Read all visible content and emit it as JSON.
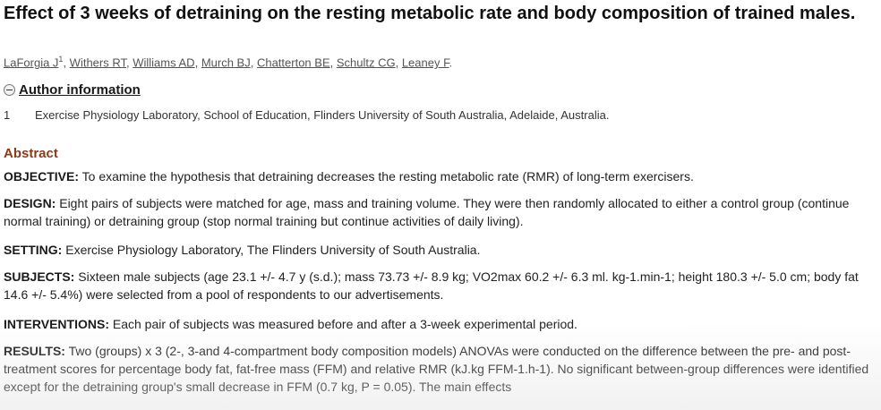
{
  "article": {
    "title": "Effect of 3 weeks of detraining on the resting metabolic rate and body composition of trained males."
  },
  "authors": {
    "list": [
      {
        "name": "LaForgia J",
        "sup": "1"
      },
      {
        "name": "Withers RT"
      },
      {
        "name": "Williams AD"
      },
      {
        "name": "Murch BJ"
      },
      {
        "name": "Chatterton BE"
      },
      {
        "name": "Schultz CG"
      },
      {
        "name": "Leaney F"
      }
    ],
    "separator": ", ",
    "end": "."
  },
  "author_info": {
    "label": "Author information",
    "icon": "minus-circle-icon"
  },
  "affiliations": [
    {
      "num": "1",
      "text": "Exercise Physiology Laboratory, School of Education, Flinders University of South Australia, Adelaide, Australia."
    }
  ],
  "abstract": {
    "heading": "Abstract",
    "heading_color": "#8b3a1a",
    "sections": [
      {
        "label": "OBJECTIVE:",
        "text": " To examine the hypothesis that detraining decreases the resting metabolic rate (RMR) of long-term exercisers."
      },
      {
        "label": "DESIGN:",
        "text": " Eight pairs of subjects were matched for age, mass and training volume. They were then randomly allocated to either a control group (continue normal training) or detraining group (stop normal training but continue activities of daily living)."
      },
      {
        "label": "SETTING:",
        "text": " Exercise Physiology Laboratory, The Flinders University of South Australia."
      },
      {
        "label": "SUBJECTS:",
        "text": " Sixteen male subjects (age 23.1 +/- 4.7 y (s.d.); mass 73.73 +/- 8.9 kg; VO2max 60.2 +/- 6.3 ml. kg-1.min-1; height 180.3 +/- 5.0 cm; body fat 14.6 +/- 5.4%) were selected from a pool of respondents to our advertisements."
      },
      {
        "label": "INTERVENTIONS:",
        "text": " Each pair of subjects was measured before and after a 3-week experimental period."
      },
      {
        "label": "RESULTS:",
        "text": " Two (groups) x 3 (2-, 3-and 4-compartment body composition models) ANOVAs were conducted on the difference between the pre- and post-treatment scores for percentage body fat, fat-free mass (FFM) and relative RMR (kJ.kg FFM-1.h-1). No significant between-group differences were identified except for the detraining group's small decrease in FFM (0.7 kg, P = 0.05). The main effects"
      }
    ]
  }
}
